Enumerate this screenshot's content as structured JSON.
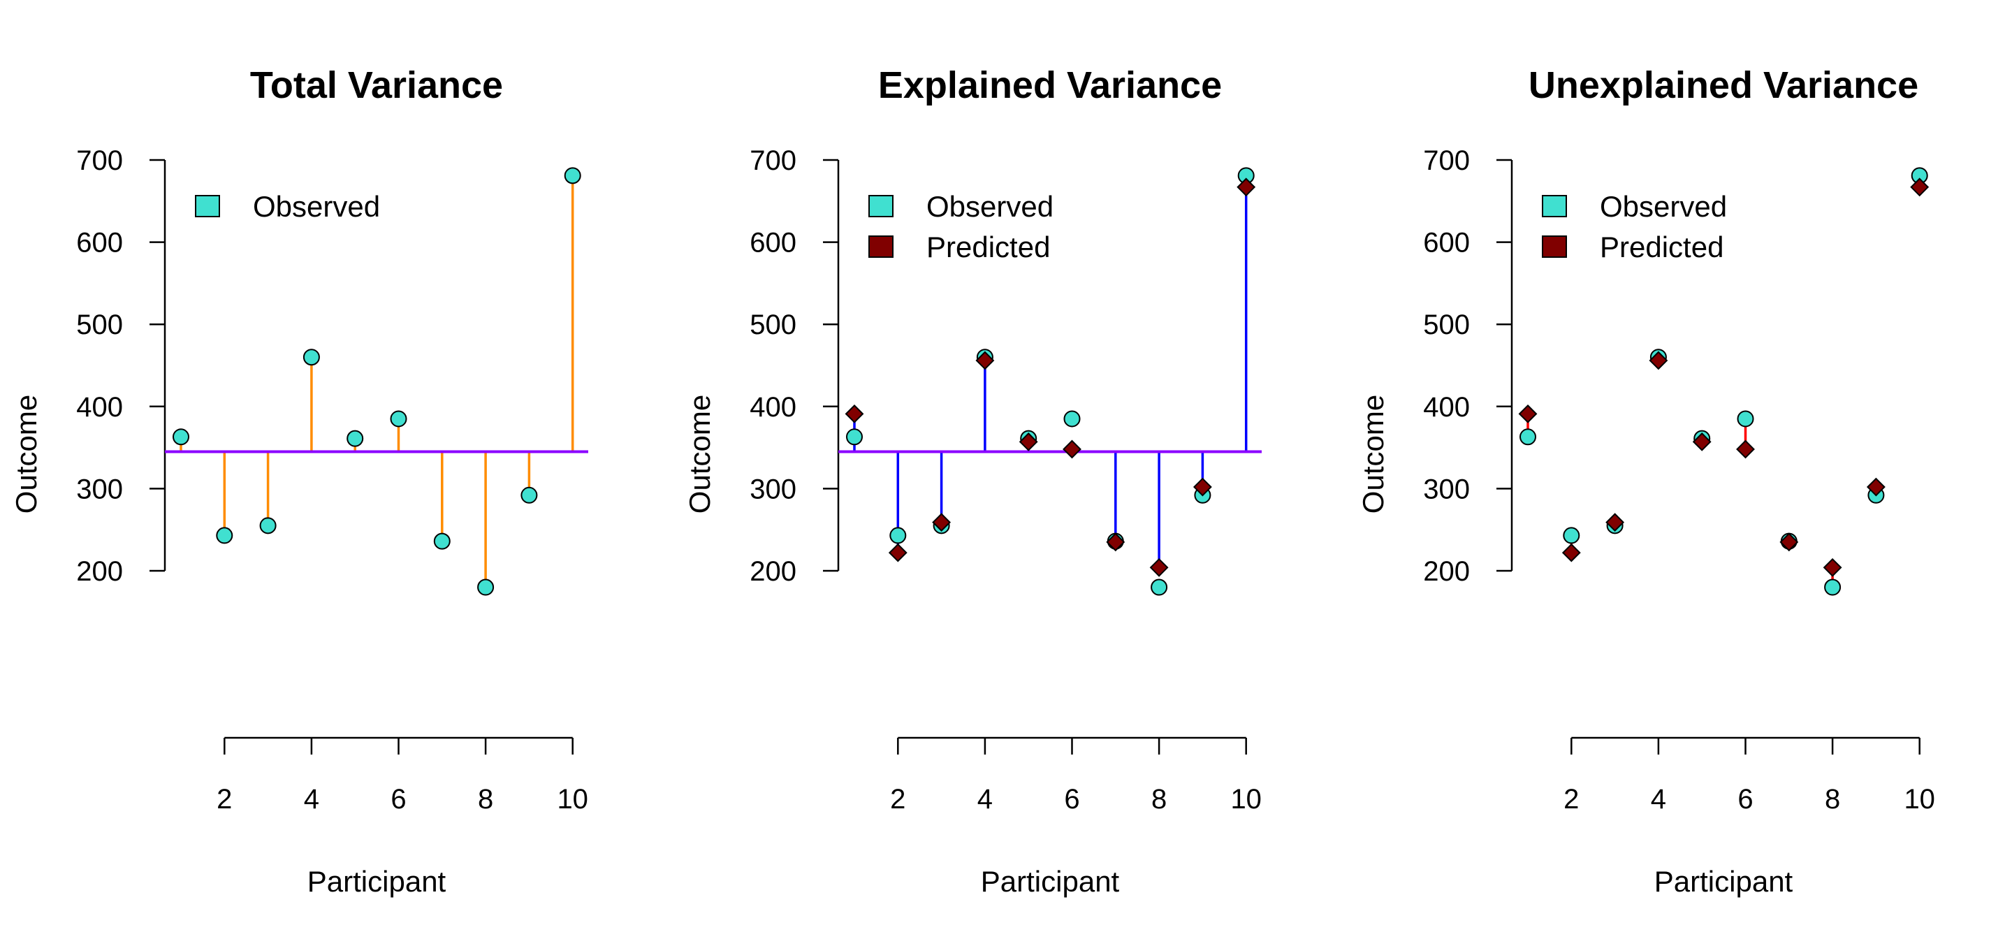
{
  "chart_data": [
    {
      "type": "scatter",
      "title": "Total Variance",
      "xlabel": "Participant",
      "ylabel": "Outcome",
      "xlim": [
        1,
        10
      ],
      "ylim": [
        200,
        700
      ],
      "xticks": [
        "2",
        "4",
        "6",
        "8",
        "10"
      ],
      "yticks": [
        "200",
        "300",
        "400",
        "500",
        "600",
        "700"
      ],
      "legend": [
        "Observed"
      ],
      "legend_position": "top-left",
      "mean": 345,
      "segments": "observed-to-mean",
      "segment_color": "#FF8C00",
      "x": [
        1,
        2,
        3,
        4,
        5,
        6,
        7,
        8,
        9,
        10
      ],
      "series": [
        {
          "name": "Observed",
          "values": [
            363,
            243,
            255,
            460,
            361,
            385,
            236,
            180,
            292,
            681
          ],
          "color": "#40E0D0",
          "marker": "circle"
        }
      ]
    },
    {
      "type": "scatter",
      "title": "Explained Variance",
      "xlabel": "Participant",
      "ylabel": "Outcome",
      "xlim": [
        1,
        10
      ],
      "ylim": [
        200,
        700
      ],
      "xticks": [
        "2",
        "4",
        "6",
        "8",
        "10"
      ],
      "yticks": [
        "200",
        "300",
        "400",
        "500",
        "600",
        "700"
      ],
      "legend": [
        "Observed",
        "Predicted"
      ],
      "legend_position": "top-left",
      "mean": 345,
      "segments": "predicted-to-mean",
      "segment_color": "#0000FF",
      "x": [
        1,
        2,
        3,
        4,
        5,
        6,
        7,
        8,
        9,
        10
      ],
      "series": [
        {
          "name": "Observed",
          "values": [
            363,
            243,
            255,
            460,
            361,
            385,
            236,
            180,
            292,
            681
          ],
          "color": "#40E0D0",
          "marker": "circle"
        },
        {
          "name": "Predicted",
          "values": [
            391,
            222,
            259,
            456,
            357,
            348,
            235,
            204,
            302,
            667
          ],
          "color": "#800000",
          "marker": "diamond"
        }
      ]
    },
    {
      "type": "scatter",
      "title": "Unexplained Variance",
      "xlabel": "Participant",
      "ylabel": "Outcome",
      "xlim": [
        1,
        10
      ],
      "ylim": [
        200,
        700
      ],
      "xticks": [
        "2",
        "4",
        "6",
        "8",
        "10"
      ],
      "yticks": [
        "200",
        "300",
        "400",
        "500",
        "600",
        "700"
      ],
      "legend": [
        "Observed",
        "Predicted"
      ],
      "legend_position": "top-left",
      "segments": "observed-to-predicted",
      "segment_color": "#FF0000",
      "x": [
        1,
        2,
        3,
        4,
        5,
        6,
        7,
        8,
        9,
        10
      ],
      "series": [
        {
          "name": "Observed",
          "values": [
            363,
            243,
            255,
            460,
            361,
            385,
            236,
            180,
            292,
            681
          ],
          "color": "#40E0D0",
          "marker": "circle"
        },
        {
          "name": "Predicted",
          "values": [
            391,
            222,
            259,
            456,
            357,
            348,
            235,
            204,
            302,
            667
          ],
          "color": "#800000",
          "marker": "diamond"
        }
      ]
    }
  ],
  "mean_line_color": "#8B00FF"
}
